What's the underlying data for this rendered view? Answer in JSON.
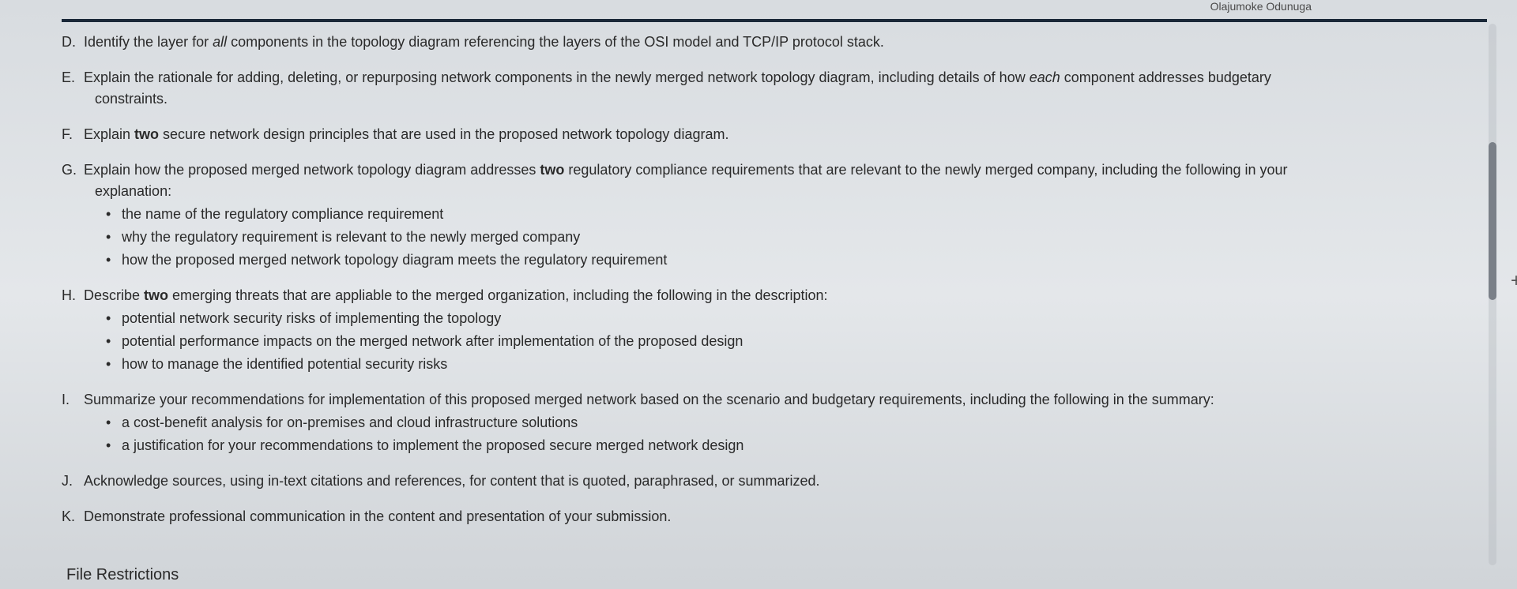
{
  "header": {
    "name": "Olajumoke Odunuga"
  },
  "items": {
    "d": {
      "letter": "D.",
      "prefix": "Identify the layer for ",
      "italic": "all",
      "suffix": " components in the topology diagram referencing the layers of the OSI model and TCP/IP protocol stack."
    },
    "e": {
      "letter": "E.",
      "prefix": "Explain the rationale for adding, deleting, or repurposing network components in the newly merged network topology diagram, including details of how ",
      "italic": "each",
      "suffix": " component addresses budgetary",
      "continuation": "constraints."
    },
    "f": {
      "letter": "F.",
      "prefix": "Explain ",
      "bold": "two",
      "suffix": " secure network design principles that are used in the proposed network topology diagram."
    },
    "g": {
      "letter": "G.",
      "prefix": "Explain how the proposed merged network topology diagram addresses ",
      "bold": "two",
      "suffix": " regulatory compliance requirements that are relevant to the newly merged company, including the following in your",
      "continuation": "explanation:",
      "bullets": [
        "the name of the regulatory compliance requirement",
        "why the regulatory requirement is relevant to the newly merged company",
        "how the proposed merged network topology diagram meets the regulatory requirement"
      ]
    },
    "h": {
      "letter": "H.",
      "prefix": "Describe ",
      "bold": "two",
      "suffix": " emerging threats that are appliable to the merged organization, including the following in the description:",
      "bullets": [
        "potential network security risks of implementing the topology",
        "potential performance impacts on the merged network after implementation of the proposed design",
        "how to manage the identified potential security risks"
      ]
    },
    "i": {
      "letter": "I.",
      "text": "Summarize your recommendations for implementation of this proposed merged network based on the scenario and budgetary requirements, including the following in the summary:",
      "bullets": [
        "a cost-benefit analysis for on-premises and cloud infrastructure solutions",
        "a justification for your recommendations to implement the proposed secure merged network design"
      ]
    },
    "j": {
      "letter": "J.",
      "text": "Acknowledge sources, using in-text citations and references, for content that is quoted, paraphrased, or summarized."
    },
    "k": {
      "letter": "K.",
      "text": "Demonstrate professional communication in the content and presentation of your submission."
    }
  },
  "footer": {
    "title": "File Restrictions"
  },
  "glyphs": {
    "bullet": "•",
    "plus": "+"
  }
}
